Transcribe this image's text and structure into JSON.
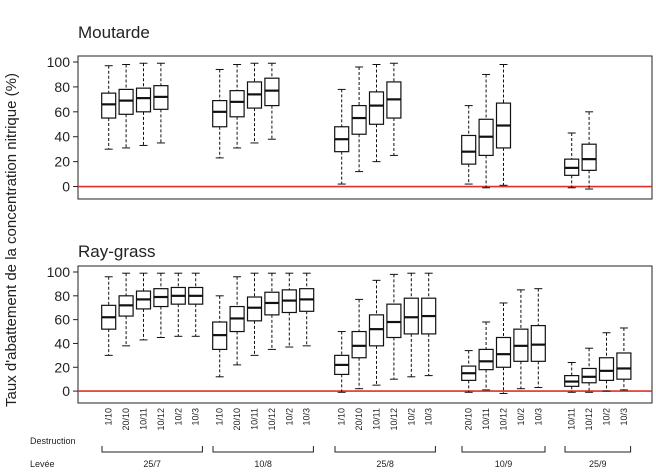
{
  "chart_data": {
    "type": "boxplot",
    "ylabel": "Taux d'abattement de la concentration nitrique (%)",
    "ylim": [
      -10,
      100
    ],
    "yticks": [
      0,
      20,
      40,
      60,
      80,
      100
    ],
    "reference_line": {
      "y": 0,
      "color": "#e0302a"
    },
    "row_labels": {
      "destruction": "Destruction",
      "levee": "Levée"
    },
    "panels": [
      {
        "title": "Moutarde",
        "groups": [
          {
            "levee": "25/7",
            "boxes": [
              {
                "destruction": "1/10",
                "min": 30,
                "q1": 55,
                "median": 66,
                "q3": 75,
                "max": 97
              },
              {
                "destruction": "20/10",
                "min": 31,
                "q1": 58,
                "median": 69,
                "q3": 78,
                "max": 98
              },
              {
                "destruction": "10/11",
                "min": 33,
                "q1": 60,
                "median": 71,
                "q3": 79,
                "max": 99
              },
              {
                "destruction": "10/12",
                "min": 35,
                "q1": 62,
                "median": 72,
                "q3": 81,
                "max": 99
              }
            ]
          },
          {
            "levee": "10/8",
            "boxes": [
              {
                "destruction": "1/10",
                "min": 23,
                "q1": 48,
                "median": 60,
                "q3": 69,
                "max": 94
              },
              {
                "destruction": "20/10",
                "min": 31,
                "q1": 56,
                "median": 68,
                "q3": 77,
                "max": 98
              },
              {
                "destruction": "10/11",
                "min": 35,
                "q1": 63,
                "median": 74,
                "q3": 84,
                "max": 99
              },
              {
                "destruction": "10/12",
                "min": 38,
                "q1": 65,
                "median": 77,
                "q3": 87,
                "max": 99
              }
            ]
          },
          {
            "levee": "25/8",
            "boxes": [
              {
                "destruction": "1/10",
                "min": 2,
                "q1": 28,
                "median": 38,
                "q3": 48,
                "max": 78
              },
              {
                "destruction": "20/10",
                "min": 12,
                "q1": 42,
                "median": 55,
                "q3": 65,
                "max": 96
              },
              {
                "destruction": "10/11",
                "min": 20,
                "q1": 50,
                "median": 65,
                "q3": 76,
                "max": 98
              },
              {
                "destruction": "10/12",
                "min": 25,
                "q1": 55,
                "median": 70,
                "q3": 84,
                "max": 99
              }
            ]
          },
          {
            "levee": "10/9",
            "boxes": [
              {
                "destruction": "20/10",
                "min": 2,
                "q1": 18,
                "median": 28,
                "q3": 41,
                "max": 65
              },
              {
                "destruction": "10/11",
                "min": -1,
                "q1": 25,
                "median": 40,
                "q3": 54,
                "max": 90
              },
              {
                "destruction": "10/12",
                "min": 1,
                "q1": 31,
                "median": 49,
                "q3": 67,
                "max": 98
              }
            ]
          },
          {
            "levee": "25/9",
            "boxes": [
              {
                "destruction": "10/11",
                "min": -1,
                "q1": 9,
                "median": 15,
                "q3": 22,
                "max": 43
              },
              {
                "destruction": "10/12",
                "min": -2,
                "q1": 13,
                "median": 22,
                "q3": 34,
                "max": 60
              }
            ]
          }
        ]
      },
      {
        "title": "Ray-grass",
        "groups": [
          {
            "levee": "25/7",
            "boxes": [
              {
                "destruction": "1/10",
                "min": 30,
                "q1": 52,
                "median": 62,
                "q3": 72,
                "max": 96
              },
              {
                "destruction": "20/10",
                "min": 38,
                "q1": 63,
                "median": 72,
                "q3": 80,
                "max": 99
              },
              {
                "destruction": "10/11",
                "min": 43,
                "q1": 69,
                "median": 77,
                "q3": 84,
                "max": 99
              },
              {
                "destruction": "10/12",
                "min": 45,
                "q1": 71,
                "median": 79,
                "q3": 86,
                "max": 99
              },
              {
                "destruction": "10/2",
                "min": 46,
                "q1": 73,
                "median": 80,
                "q3": 87,
                "max": 99
              },
              {
                "destruction": "10/3",
                "min": 46,
                "q1": 73,
                "median": 80,
                "q3": 87,
                "max": 99
              }
            ]
          },
          {
            "levee": "10/8",
            "boxes": [
              {
                "destruction": "1/10",
                "min": 12,
                "q1": 35,
                "median": 47,
                "q3": 58,
                "max": 80
              },
              {
                "destruction": "20/10",
                "min": 22,
                "q1": 50,
                "median": 61,
                "q3": 71,
                "max": 96
              },
              {
                "destruction": "10/11",
                "min": 30,
                "q1": 59,
                "median": 70,
                "q3": 79,
                "max": 99
              },
              {
                "destruction": "10/12",
                "min": 35,
                "q1": 64,
                "median": 74,
                "q3": 83,
                "max": 99
              },
              {
                "destruction": "10/2",
                "min": 37,
                "q1": 66,
                "median": 76,
                "q3": 85,
                "max": 99
              },
              {
                "destruction": "10/3",
                "min": 38,
                "q1": 67,
                "median": 77,
                "q3": 86,
                "max": 99
              }
            ]
          },
          {
            "levee": "25/8",
            "boxes": [
              {
                "destruction": "1/10",
                "min": -1,
                "q1": 14,
                "median": 22,
                "q3": 30,
                "max": 50
              },
              {
                "destruction": "20/10",
                "min": 2,
                "q1": 28,
                "median": 38,
                "q3": 50,
                "max": 77
              },
              {
                "destruction": "10/11",
                "min": 5,
                "q1": 38,
                "median": 52,
                "q3": 64,
                "max": 93
              },
              {
                "destruction": "10/12",
                "min": 10,
                "q1": 45,
                "median": 58,
                "q3": 73,
                "max": 98
              },
              {
                "destruction": "10/2",
                "min": 12,
                "q1": 48,
                "median": 62,
                "q3": 78,
                "max": 99
              },
              {
                "destruction": "10/3",
                "min": 13,
                "q1": 48,
                "median": 63,
                "q3": 78,
                "max": 99
              }
            ]
          },
          {
            "levee": "10/9",
            "boxes": [
              {
                "destruction": "20/10",
                "min": -1,
                "q1": 9,
                "median": 15,
                "q3": 21,
                "max": 34
              },
              {
                "destruction": "10/11",
                "min": 1,
                "q1": 18,
                "median": 25,
                "q3": 35,
                "max": 58
              },
              {
                "destruction": "10/12",
                "min": -2,
                "q1": 20,
                "median": 31,
                "q3": 45,
                "max": 74
              },
              {
                "destruction": "10/2",
                "min": 2,
                "q1": 25,
                "median": 38,
                "q3": 52,
                "max": 85
              },
              {
                "destruction": "10/3",
                "min": 3,
                "q1": 25,
                "median": 39,
                "q3": 55,
                "max": 86
              }
            ]
          },
          {
            "levee": "25/9",
            "boxes": [
              {
                "destruction": "10/11",
                "min": -1,
                "q1": 4,
                "median": 8,
                "q3": 13,
                "max": 24
              },
              {
                "destruction": "10/12",
                "min": -1,
                "q1": 7,
                "median": 12,
                "q3": 19,
                "max": 36
              },
              {
                "destruction": "10/2",
                "min": 0,
                "q1": 9,
                "median": 17,
                "q3": 28,
                "max": 49
              },
              {
                "destruction": "10/3",
                "min": 1,
                "q1": 10,
                "median": 19,
                "q3": 32,
                "max": 53
              }
            ]
          }
        ]
      }
    ]
  }
}
